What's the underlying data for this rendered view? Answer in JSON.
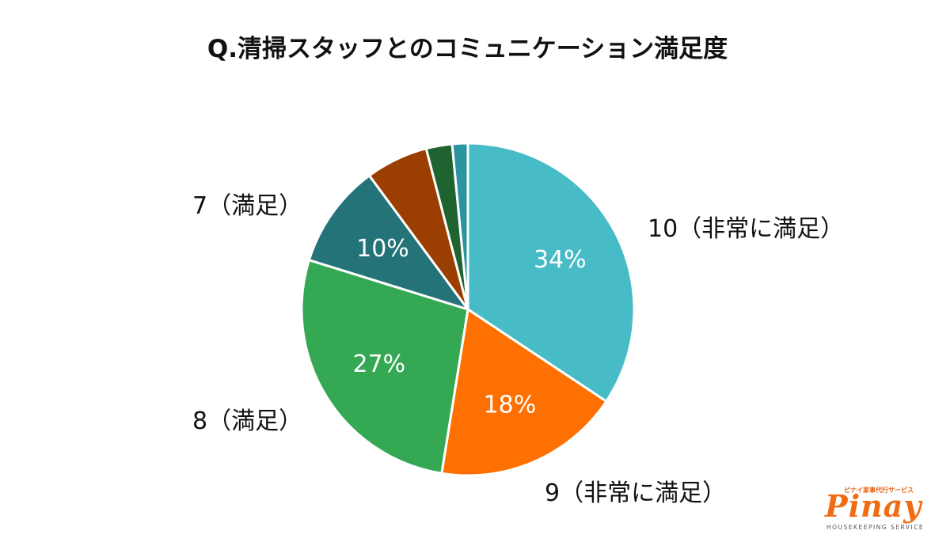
{
  "chart_data": {
    "type": "pie",
    "title": "Q.清掃スタッフとのコミュニケーション満足度",
    "start_angle_deg": 0,
    "direction": "clockwise",
    "slices": [
      {
        "label": "10（非常に満足）",
        "value": 34,
        "data_label": "34%",
        "color": "#47bcc6"
      },
      {
        "label": "9（非常に満足）",
        "value": 18,
        "data_label": "18%",
        "color": "#fe7002"
      },
      {
        "label": "8（満足）",
        "value": 27,
        "data_label": "27%",
        "color": "#35a853"
      },
      {
        "label": "7（満足）",
        "value": 10,
        "data_label": "10%",
        "color": "#247378"
      },
      {
        "label": "",
        "value": 6,
        "data_label": "",
        "color": "#9b3e02"
      },
      {
        "label": "",
        "value": 2.5,
        "data_label": "",
        "color": "#1f6430"
      },
      {
        "label": "",
        "value": 1.5,
        "data_label": "",
        "color": "#2a94a1"
      }
    ]
  },
  "logo": {
    "top_text": "ピナイ家事代行サービス",
    "main_text": "Pinay",
    "sub_text": "HOUSEKEEPING SERVICE"
  }
}
